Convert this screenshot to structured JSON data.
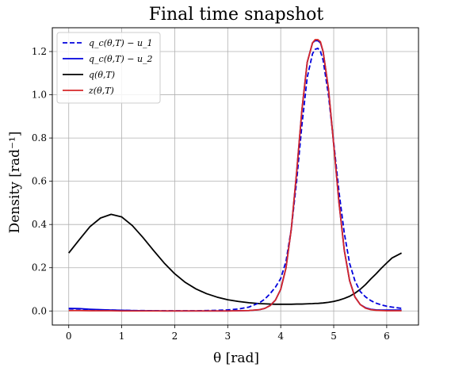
{
  "chart_data": {
    "type": "line",
    "title": "Final time snapshot",
    "xlabel": "θ [rad]",
    "ylabel": "Density [rad⁻¹]",
    "xlim": [
      -0.31,
      6.6
    ],
    "ylim": [
      -0.065,
      1.31
    ],
    "xticks": [
      0,
      1,
      2,
      3,
      4,
      5,
      6
    ],
    "xtick_labels": [
      "0",
      "1",
      "2",
      "3",
      "4",
      "5",
      "6"
    ],
    "yticks": [
      0.0,
      0.2,
      0.4,
      0.6,
      0.8,
      1.0,
      1.2
    ],
    "ytick_labels": [
      "0.0",
      "0.2",
      "0.4",
      "0.6",
      "0.8",
      "1.0",
      "1.2"
    ],
    "grid": true,
    "legend_position": "top-left",
    "x": [
      0.0,
      0.2,
      0.4,
      0.6,
      0.8,
      1.0,
      1.2,
      1.4,
      1.6,
      1.8,
      2.0,
      2.2,
      2.4,
      2.6,
      2.8,
      3.0,
      3.2,
      3.4,
      3.6,
      3.7,
      3.8,
      3.9,
      4.0,
      4.1,
      4.2,
      4.3,
      4.4,
      4.5,
      4.6,
      4.65,
      4.7,
      4.75,
      4.8,
      4.9,
      5.0,
      5.1,
      5.2,
      5.3,
      5.4,
      5.5,
      5.6,
      5.7,
      5.8,
      5.9,
      6.0,
      6.1,
      6.28
    ],
    "series": [
      {
        "name": "q_c(θ,T) − u_1",
        "color": "#0000dd",
        "dash": "dashed",
        "values": [
          0.01,
          0.009,
          0.007,
          0.005,
          0.004,
          0.003,
          0.002,
          0.002,
          0.001,
          0.001,
          0.001,
          0.001,
          0.001,
          0.002,
          0.003,
          0.005,
          0.009,
          0.018,
          0.038,
          0.055,
          0.08,
          0.11,
          0.15,
          0.23,
          0.38,
          0.6,
          0.86,
          1.08,
          1.19,
          1.21,
          1.215,
          1.2,
          1.16,
          1.0,
          0.78,
          0.55,
          0.36,
          0.22,
          0.14,
          0.09,
          0.065,
          0.048,
          0.036,
          0.028,
          0.022,
          0.018,
          0.012
        ]
      },
      {
        "name": "q_c(θ,T) − u_2",
        "color": "#0000dd",
        "dash": "solid",
        "values": [
          0.012,
          0.011,
          0.008,
          0.006,
          0.004,
          0.003,
          0.002,
          0.001,
          0.001,
          0.0,
          0.0,
          0.0,
          0.0,
          0.0,
          0.0,
          0.0,
          0.001,
          0.002,
          0.006,
          0.012,
          0.025,
          0.05,
          0.1,
          0.2,
          0.38,
          0.64,
          0.93,
          1.15,
          1.24,
          1.25,
          1.25,
          1.24,
          1.2,
          1.03,
          0.77,
          0.5,
          0.28,
          0.14,
          0.065,
          0.03,
          0.015,
          0.008,
          0.005,
          0.004,
          0.004,
          0.004,
          0.004
        ]
      },
      {
        "name": "q(θ,T)",
        "color": "#000000",
        "dash": "solid",
        "values": [
          0.268,
          0.33,
          0.39,
          0.43,
          0.447,
          0.435,
          0.395,
          0.34,
          0.28,
          0.222,
          0.172,
          0.132,
          0.102,
          0.08,
          0.064,
          0.052,
          0.044,
          0.038,
          0.034,
          0.033,
          0.032,
          0.031,
          0.031,
          0.031,
          0.031,
          0.032,
          0.032,
          0.033,
          0.034,
          0.035,
          0.035,
          0.036,
          0.037,
          0.04,
          0.044,
          0.05,
          0.058,
          0.068,
          0.082,
          0.1,
          0.122,
          0.148,
          0.172,
          0.198,
          0.222,
          0.245,
          0.268
        ]
      },
      {
        "name": "z(θ,T)",
        "color": "#d62728",
        "dash": "solid",
        "values": [
          0.002,
          0.002,
          0.001,
          0.001,
          0.001,
          0.0,
          0.0,
          0.0,
          0.0,
          0.0,
          0.0,
          0.0,
          0.0,
          0.0,
          0.0,
          0.0,
          0.001,
          0.002,
          0.006,
          0.012,
          0.025,
          0.05,
          0.1,
          0.2,
          0.38,
          0.64,
          0.93,
          1.15,
          1.24,
          1.255,
          1.255,
          1.245,
          1.2,
          1.03,
          0.77,
          0.5,
          0.28,
          0.14,
          0.065,
          0.03,
          0.013,
          0.006,
          0.003,
          0.002,
          0.001,
          0.001,
          0.001
        ]
      }
    ]
  }
}
